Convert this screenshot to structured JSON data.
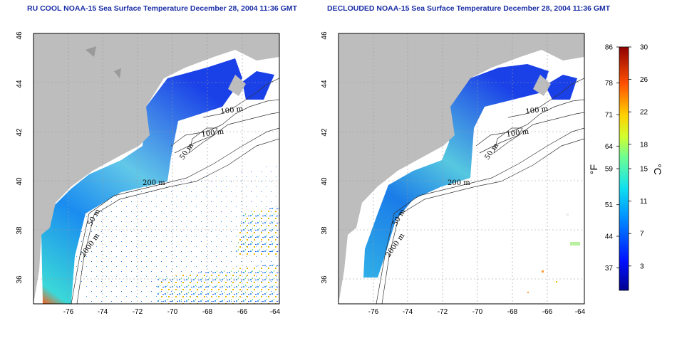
{
  "panels": [
    {
      "title": "RU COOL NOAA-15 Sea Surface Temperature December 28, 2004 11:36 GMT",
      "lat_ticks": [
        "46",
        "44",
        "42",
        "40",
        "38",
        "36"
      ],
      "lon_ticks": [
        "-76",
        "-74",
        "-72",
        "-70",
        "-68",
        "-66",
        "-64"
      ],
      "contour_labels": [
        "100 m",
        "100 m",
        "50 m",
        "200 m",
        "50 m",
        "2000 m"
      ]
    },
    {
      "title": "DECLOUDED NOAA-15 Sea Surface Temperature December 28, 2004 11:36 GMT",
      "lat_ticks": [
        "46",
        "44",
        "42",
        "40",
        "38",
        "36"
      ],
      "lon_ticks": [
        "-76",
        "-74",
        "-72",
        "-70",
        "-68",
        "-66",
        "-64"
      ],
      "contour_labels": [
        "100 m",
        "100 m",
        "50 m",
        "200 m",
        "50 m",
        "2000 m"
      ]
    }
  ],
  "colorbar": {
    "fahrenheit_unit": "°F",
    "celsius_unit": "°C",
    "fahrenheit_ticks": [
      "86",
      "78",
      "71",
      "64",
      "59",
      "51",
      "44",
      "37"
    ],
    "celsius_ticks": [
      "30",
      "26",
      "22",
      "18",
      "15",
      "11",
      "7",
      "3"
    ],
    "celsius_range": [
      0,
      30
    ]
  },
  "colors": {
    "land": "#bdbdbd",
    "title": "#1a2ea6",
    "no_data": "#ffffff"
  }
}
